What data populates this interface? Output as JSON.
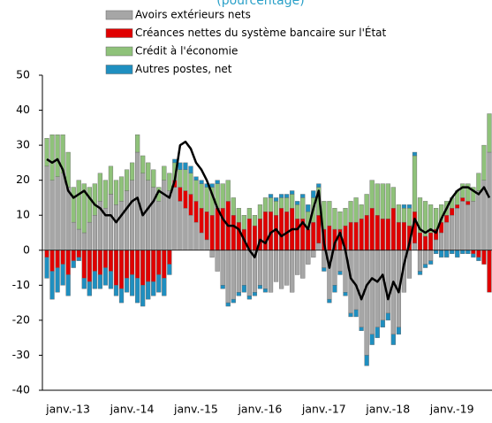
{
  "chart_data": {
    "type": "bar-line",
    "title": "(pourcentage)",
    "categories": [
      null,
      null,
      "janv.-13",
      null,
      null,
      null,
      null,
      null,
      null,
      null,
      null,
      null,
      null,
      null,
      "janv.-14",
      null,
      null,
      null,
      null,
      null,
      null,
      null,
      null,
      null,
      null,
      null,
      "janv.-15",
      null,
      null,
      null,
      null,
      null,
      null,
      null,
      null,
      null,
      null,
      null,
      "janv.-16",
      null,
      null,
      null,
      null,
      null,
      null,
      null,
      null,
      null,
      null,
      null,
      "janv.-17",
      null,
      null,
      null,
      null,
      null,
      null,
      null,
      null,
      null,
      null,
      null,
      "janv.-18",
      null,
      null,
      null,
      null,
      null,
      null,
      null,
      null,
      null,
      null,
      null,
      "janv.-19",
      null,
      null,
      null,
      null,
      null,
      null,
      null,
      null,
      null
    ],
    "series": [
      {
        "name": "Avoirs extérieurs nets",
        "color": "#a6a6a6",
        "values": [
          24,
          20,
          21,
          22,
          18,
          8,
          6,
          5,
          8,
          10,
          14,
          12,
          16,
          13,
          14,
          17,
          20,
          28,
          22,
          20,
          18,
          14,
          20,
          17,
          18,
          14,
          12,
          10,
          8,
          5,
          3,
          -2,
          -6,
          -10,
          -15,
          -14,
          -12,
          -10,
          -13,
          -12,
          -10,
          -11,
          -12,
          -9,
          -11,
          -10,
          -12,
          -7,
          -8,
          -4,
          -2,
          2,
          -5,
          -14,
          -10,
          -6,
          -12,
          -18,
          -17,
          -22,
          -30,
          -24,
          -22,
          -20,
          -18,
          -24,
          -22,
          -12,
          -8,
          2,
          -6,
          -4,
          -3,
          3,
          5,
          8,
          10,
          12,
          14,
          13,
          14,
          17,
          20,
          28
        ]
      },
      {
        "name": "Créances nettes du système bancaire sur l'État",
        "color": "#e00000",
        "values": [
          -2,
          -6,
          -5,
          -4,
          -7,
          -3,
          -2,
          -8,
          -9,
          -6,
          -7,
          -5,
          -6,
          -10,
          -11,
          -8,
          -7,
          -8,
          -10,
          -9,
          -9,
          -7,
          -8,
          -4,
          2,
          4,
          5,
          6,
          6,
          7,
          8,
          10,
          12,
          12,
          14,
          10,
          8,
          6,
          9,
          7,
          9,
          11,
          11,
          10,
          12,
          11,
          12,
          9,
          9,
          6,
          8,
          8,
          6,
          7,
          6,
          6,
          7,
          8,
          8,
          9,
          10,
          12,
          10,
          9,
          9,
          12,
          8,
          8,
          7,
          9,
          5,
          4,
          5,
          3,
          3,
          2,
          2,
          1,
          1,
          1,
          -1,
          -2,
          -4,
          -12
        ]
      },
      {
        "name": "Crédit à l'économie",
        "color": "#8fc27a",
        "values": [
          8,
          13,
          12,
          11,
          10,
          10,
          14,
          14,
          10,
          9,
          8,
          8,
          8,
          7,
          7,
          6,
          5,
          5,
          5,
          5,
          5,
          4,
          4,
          5,
          5,
          5,
          6,
          6,
          6,
          7,
          7,
          8,
          7,
          7,
          6,
          5,
          4,
          4,
          3,
          3,
          4,
          4,
          4,
          4,
          3,
          4,
          4,
          4,
          6,
          5,
          7,
          8,
          8,
          7,
          6,
          5,
          5,
          6,
          7,
          4,
          6,
          8,
          9,
          10,
          10,
          6,
          5,
          4,
          5,
          16,
          10,
          10,
          8,
          6,
          5,
          4,
          3,
          4,
          4,
          5,
          4,
          5,
          10,
          11
        ]
      },
      {
        "name": "Autres postes, net",
        "color": "#1f8fc0",
        "values": [
          -6,
          -8,
          -7,
          -6,
          -6,
          -2,
          -1,
          -3,
          -4,
          -5,
          -4,
          -5,
          -5,
          -3,
          -4,
          -4,
          -6,
          -7,
          -6,
          -5,
          -4,
          -5,
          -5,
          -3,
          1,
          2,
          2,
          2,
          1,
          1,
          1,
          1,
          1,
          -1,
          -1,
          -1,
          -1,
          -2,
          -1,
          -1,
          -1,
          -1,
          1,
          1,
          1,
          1,
          1,
          1,
          1,
          2,
          2,
          1,
          -1,
          -1,
          -2,
          -1,
          -1,
          -1,
          -2,
          -1,
          -3,
          -3,
          -3,
          -2,
          -2,
          -3,
          -2,
          1,
          1,
          1,
          -1,
          -1,
          -1,
          -1,
          -2,
          -2,
          -1,
          -2,
          -1,
          -1,
          -1,
          -1,
          0,
          0
        ]
      },
      {
        "kind": "line",
        "color": "#000000",
        "values": [
          26,
          25,
          26,
          23,
          17,
          15,
          16,
          17,
          15,
          13,
          12,
          10,
          10,
          8,
          10,
          12,
          14,
          15,
          10,
          12,
          14,
          17,
          16,
          15,
          20,
          30,
          31,
          29,
          25,
          23,
          20,
          16,
          12,
          9,
          7,
          7,
          6,
          3,
          0,
          -2,
          3,
          2,
          5,
          6,
          4,
          5,
          6,
          6,
          8,
          6,
          12,
          17,
          2,
          -5,
          2,
          5,
          0,
          -8,
          -10,
          -14,
          -10,
          -8,
          -9,
          -7,
          -14,
          -9,
          -12,
          -4,
          2,
          9,
          6,
          5,
          6,
          5,
          9,
          12,
          15,
          17,
          18,
          18,
          17,
          16,
          18,
          15
        ]
      }
    ],
    "ylim": [
      -40,
      50
    ],
    "yticks": [
      -40,
      -30,
      -20,
      -10,
      0,
      10,
      20,
      30,
      40,
      50
    ]
  }
}
